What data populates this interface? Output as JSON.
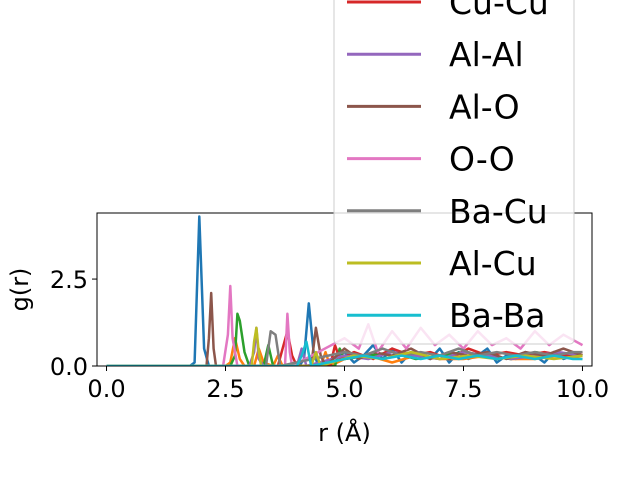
{
  "chart_data": {
    "type": "line",
    "xlabel": "r (Å)",
    "ylabel": "g(r)",
    "xlim": [
      -0.2,
      10.2
    ],
    "ylim": [
      0.0,
      4.4
    ],
    "x_ticks": [
      "0.0",
      "2.5",
      "5.0",
      "7.5",
      "10.0"
    ],
    "y_ticks": [
      "0.0",
      "2.5"
    ],
    "legend": {
      "placement": "upper-right, extending above the plot",
      "entries": [
        "Cu-Cu",
        "Al-Al",
        "Al-O",
        "O-O",
        "Ba-Cu",
        "Al-Cu",
        "Ba-Ba"
      ]
    },
    "series": [
      {
        "color": "#1f77b4",
        "x": [
          0,
          1.75,
          1.85,
          1.95,
          2.05,
          2.15,
          4.05,
          4.15,
          4.25,
          4.35,
          4.45,
          5.0,
          5.2,
          5.4,
          5.6,
          5.8,
          6.0,
          6.2,
          6.4,
          6.6,
          6.8,
          7.0,
          7.2,
          7.4,
          7.6,
          7.8,
          8.0,
          8.2,
          8.4,
          8.6,
          8.8,
          9.0,
          9.2,
          9.4,
          9.6,
          9.8,
          10.0
        ],
        "y": [
          0,
          0,
          0.1,
          4.3,
          0.5,
          0,
          0,
          0.2,
          1.8,
          0.4,
          0,
          0.4,
          0.1,
          0.3,
          0.6,
          0.2,
          0.5,
          0.1,
          0.4,
          0.3,
          0.2,
          0.5,
          0.1,
          0.4,
          0.2,
          0.3,
          0.5,
          0.1,
          0.3,
          0.2,
          0.4,
          0.3,
          0.1,
          0.4,
          0.2,
          0.3,
          0.3
        ]
      },
      {
        "color": "#ff7f0e",
        "x": [
          0,
          2.5,
          2.6,
          2.7,
          2.8,
          2.9,
          3.1,
          3.2,
          3.3,
          3.5,
          3.6,
          3.7,
          4.5,
          4.6,
          4.7,
          5.0,
          5.5,
          6.0,
          6.5,
          7.0,
          7.5,
          8.0,
          8.5,
          9.0,
          9.5,
          10.0
        ],
        "y": [
          0,
          0,
          0.1,
          0.8,
          0.2,
          0,
          0,
          0.5,
          0.1,
          0,
          0.3,
          0,
          0,
          0.4,
          0,
          0.2,
          0.3,
          0.1,
          0.3,
          0.2,
          0.2,
          0.3,
          0.2,
          0.2,
          0.3,
          0.2
        ]
      },
      {
        "color": "#2ca02c",
        "x": [
          0,
          2.6,
          2.7,
          2.75,
          2.8,
          2.9,
          3.0,
          3.3,
          3.4,
          3.5,
          4.8,
          4.9,
          5.0,
          5.5,
          6.0,
          6.5,
          7.0,
          7.5,
          8.0,
          8.5,
          9.0,
          9.5,
          10.0
        ],
        "y": [
          0,
          0,
          0.3,
          1.5,
          1.3,
          0.4,
          0,
          0,
          0.6,
          0,
          0,
          0.5,
          0.2,
          0.3,
          0.4,
          0.2,
          0.3,
          0.4,
          0.3,
          0.2,
          0.4,
          0.3,
          0.3
        ]
      },
      {
        "color": "#d62728",
        "x": [
          0,
          3.6,
          3.7,
          3.8,
          3.9,
          4.0,
          4.7,
          4.8,
          4.9,
          5.2,
          5.6,
          6.0,
          6.4,
          6.8,
          7.2,
          7.6,
          8.0,
          8.4,
          8.8,
          9.2,
          9.6,
          10.0
        ],
        "y": [
          0,
          0,
          0.5,
          1.0,
          0.3,
          0,
          0,
          0.6,
          0.2,
          0.4,
          0.2,
          0.5,
          0.3,
          0.4,
          0.2,
          0.5,
          0.3,
          0.4,
          0.3,
          0.4,
          0.3,
          0.4
        ]
      },
      {
        "color": "#9467bd",
        "x": [
          0,
          3.0,
          3.1,
          3.15,
          3.2,
          3.3,
          4.0,
          4.1,
          4.2,
          5.0,
          5.5,
          6.0,
          6.5,
          7.0,
          7.5,
          8.0,
          8.5,
          9.0,
          9.5,
          10.0
        ],
        "y": [
          0,
          0,
          0.4,
          1.1,
          0.2,
          0,
          0,
          0.5,
          0,
          0.3,
          0.2,
          0.4,
          0.3,
          0.2,
          0.4,
          0.3,
          0.2,
          0.3,
          0.4,
          0.3
        ]
      },
      {
        "color": "#8c564b",
        "x": [
          0,
          2.1,
          2.15,
          2.2,
          2.25,
          2.3,
          4.3,
          4.4,
          4.5,
          4.6,
          5.0,
          5.3,
          5.6,
          6.0,
          6.4,
          6.8,
          7.2,
          7.6,
          8.0,
          8.4,
          8.8,
          9.2,
          9.6,
          10.0
        ],
        "y": [
          0,
          0,
          0.8,
          2.1,
          0.5,
          0,
          0,
          1.1,
          0.3,
          0,
          0.5,
          0.2,
          0.4,
          0.3,
          0.5,
          0.2,
          0.4,
          0.3,
          0.4,
          0.2,
          0.4,
          0.3,
          0.5,
          0.3
        ]
      },
      {
        "color": "#e377c2",
        "x": [
          0,
          2.45,
          2.55,
          2.6,
          2.65,
          2.75,
          3.75,
          3.8,
          3.85,
          3.9,
          5.0,
          5.3,
          5.5,
          5.7,
          6.0,
          6.3,
          6.6,
          6.9,
          7.2,
          7.5,
          7.8,
          8.1,
          8.4,
          8.7,
          9.0,
          9.3,
          9.6,
          10.0
        ],
        "y": [
          0,
          0,
          0.9,
          2.3,
          0.8,
          0,
          0,
          1.5,
          0.4,
          0,
          0.8,
          0.5,
          1.2,
          0.4,
          1.0,
          0.5,
          1.1,
          0.6,
          0.9,
          0.5,
          1.0,
          0.6,
          0.8,
          0.5,
          1.0,
          0.6,
          0.9,
          0.6
        ]
      },
      {
        "color": "#7f7f7f",
        "x": [
          0,
          3.35,
          3.4,
          3.45,
          3.55,
          3.65,
          5.0,
          5.4,
          5.8,
          6.2,
          6.6,
          7.0,
          7.4,
          7.8,
          8.2,
          8.6,
          9.0,
          9.4,
          9.8,
          10.0
        ],
        "y": [
          0,
          0,
          0.5,
          1.0,
          0.9,
          0,
          0.4,
          0.3,
          0.5,
          0.3,
          0.4,
          0.3,
          0.5,
          0.3,
          0.4,
          0.3,
          0.4,
          0.3,
          0.4,
          0.4
        ]
      },
      {
        "color": "#bcbd22",
        "x": [
          0,
          3.05,
          3.1,
          3.15,
          3.2,
          3.25,
          4.3,
          4.4,
          4.5,
          5.2,
          5.8,
          6.4,
          7.0,
          7.6,
          8.2,
          8.8,
          9.4,
          10.0
        ],
        "y": [
          0,
          0,
          0.7,
          1.1,
          0.4,
          0,
          0,
          0.4,
          0,
          0.3,
          0.2,
          0.4,
          0.2,
          0.3,
          0.2,
          0.3,
          0.2,
          0.3
        ]
      },
      {
        "color": "#17becf",
        "x": [
          0,
          4.0,
          4.1,
          4.2,
          4.3,
          5.0,
          5.4,
          5.8,
          6.2,
          6.6,
          7.0,
          7.4,
          7.8,
          8.2,
          8.6,
          9.0,
          9.4,
          9.8,
          10.0
        ],
        "y": [
          0,
          0,
          0.3,
          0.7,
          0,
          0.2,
          0.3,
          0.2,
          0.3,
          0.2,
          0.3,
          0.2,
          0.3,
          0.2,
          0.3,
          0.2,
          0.3,
          0.2,
          0.2
        ]
      }
    ]
  },
  "legend_items": [
    {
      "label": "Cu-Cu",
      "color": "#d62728"
    },
    {
      "label": "Al-Al",
      "color": "#9467bd"
    },
    {
      "label": "Al-O",
      "color": "#8c564b"
    },
    {
      "label": "O-O",
      "color": "#e377c2"
    },
    {
      "label": "Ba-Cu",
      "color": "#7f7f7f"
    },
    {
      "label": "Al-Cu",
      "color": "#bcbd22"
    },
    {
      "label": "Ba-Ba",
      "color": "#17becf"
    }
  ]
}
